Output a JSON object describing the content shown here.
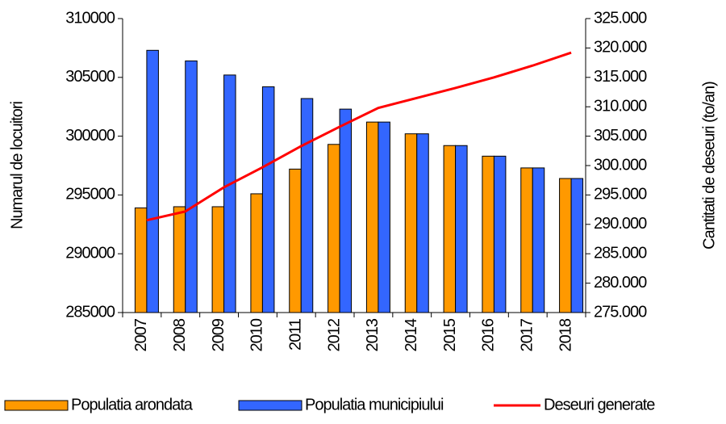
{
  "chart_data": {
    "type": "bar_line",
    "categories": [
      "2007",
      "2008",
      "2009",
      "2010",
      "2011",
      "2012",
      "2013",
      "2014",
      "2015",
      "2016",
      "2017",
      "2018"
    ],
    "series": [
      {
        "name": "Populatia arondata",
        "color": "#ff9900",
        "type": "bar",
        "values": [
          293900,
          294000,
          294000,
          295100,
          297200,
          299300,
          301200,
          300200,
          299200,
          298300,
          297300,
          296400
        ]
      },
      {
        "name": "Populatia municipiului",
        "color": "#3366ff",
        "type": "bar",
        "values": [
          307300,
          306400,
          305200,
          304200,
          303200,
          302300,
          301200,
          300200,
          299200,
          298300,
          297300,
          296400
        ]
      },
      {
        "name": "Deseuri generate",
        "color": "#ff0000",
        "type": "line",
        "axis": "y2",
        "values": [
          290700,
          292200,
          296300,
          299700,
          303300,
          306600,
          309800,
          311500,
          313200,
          315000,
          317000,
          319200
        ]
      }
    ],
    "ylabel": "Numarul de locuitori",
    "y2label": "Cantitati de deseuri (to/an)",
    "ylim": [
      285000,
      310000
    ],
    "yticks": [
      285000,
      290000,
      295000,
      300000,
      305000,
      310000
    ],
    "y2lim": [
      275000,
      325000
    ],
    "y2ticks": [
      {
        "value": 275000,
        "label": "275.000"
      },
      {
        "value": 280000,
        "label": "280.000"
      },
      {
        "value": 285000,
        "label": "285.000"
      },
      {
        "value": 290000,
        "label": "290.000"
      },
      {
        "value": 295000,
        "label": "295.000"
      },
      {
        "value": 300000,
        "label": "300.000"
      },
      {
        "value": 305000,
        "label": "305.000"
      },
      {
        "value": 310000,
        "label": "310.000"
      },
      {
        "value": 315000,
        "label": "315.000"
      },
      {
        "value": 320000,
        "label": "320.000"
      },
      {
        "value": 325000,
        "label": "325.000"
      }
    ],
    "legend": "bottom"
  }
}
